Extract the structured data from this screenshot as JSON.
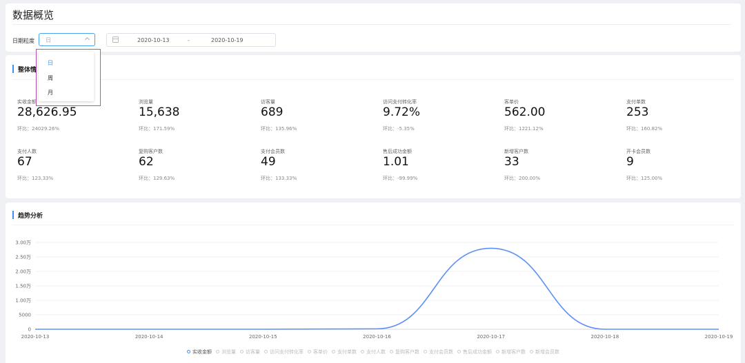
{
  "header": {
    "title": "数据概览",
    "granularity_label": "日期粒度",
    "granularity_value": "日",
    "date_start": "2020-10-13",
    "date_separator": "-",
    "date_end": "2020-10-19"
  },
  "dropdown": {
    "options": [
      "日",
      "周",
      "月"
    ],
    "selected": "日"
  },
  "overview": {
    "title": "整体情况",
    "metrics": [
      {
        "label": "实收金额",
        "value": "28,626.95",
        "ratio": "环比：24029.26%"
      },
      {
        "label": "浏览量",
        "value": "15,638",
        "ratio": "环比：171.59%"
      },
      {
        "label": "访客量",
        "value": "689",
        "ratio": "环比：135.96%"
      },
      {
        "label": "访问支付转化率",
        "value": "9.72%",
        "ratio": "环比：-5.35%"
      },
      {
        "label": "客单价",
        "value": "562.00",
        "ratio": "环比：1221.12%"
      },
      {
        "label": "支付单数",
        "value": "253",
        "ratio": "环比：160.82%"
      },
      {
        "label": "支付人数",
        "value": "67",
        "ratio": "环比：123.33%"
      },
      {
        "label": "复购客户数",
        "value": "62",
        "ratio": "环比：129.63%"
      },
      {
        "label": "支付会员数",
        "value": "49",
        "ratio": "环比：133.33%"
      },
      {
        "label": "售后成功金额",
        "value": "1.01",
        "ratio": "环比：-99.99%"
      },
      {
        "label": "新增客户数",
        "value": "33",
        "ratio": "环比：200.00%"
      },
      {
        "label": "开卡会员数",
        "value": "9",
        "ratio": "环比：125.00%"
      }
    ]
  },
  "trend": {
    "title": "趋势分析",
    "legend": [
      "实收金额",
      "浏览量",
      "访客量",
      "访问支付转化率",
      "客单价",
      "支付单数",
      "支付人数",
      "复购客户数",
      "支付会员数",
      "售后成功金额",
      "新增客户数",
      "新增会员数"
    ],
    "active_legend": "实收金额"
  },
  "chart_data": {
    "type": "line",
    "x": [
      "2020-10-13",
      "2020-10-14",
      "2020-10-15",
      "2020-10-16",
      "2020-10-17",
      "2020-10-18",
      "2020-10-19"
    ],
    "series": [
      {
        "name": "实收金额",
        "values": [
          0,
          0,
          0,
          150,
          28000,
          0,
          0
        ]
      }
    ],
    "y_tick_labels": [
      "0",
      "5000",
      "1.00万",
      "1.50万",
      "2.00万",
      "2.50万",
      "3.00万"
    ],
    "y_ticks": [
      0,
      5000,
      10000,
      15000,
      20000,
      25000,
      30000
    ],
    "ylim": [
      0,
      30000
    ],
    "smooth": true,
    "line_color": "#5b8ff9",
    "grid": "horizontal"
  }
}
